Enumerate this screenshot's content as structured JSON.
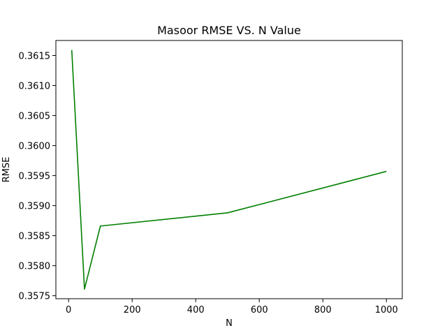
{
  "chart_data": {
    "type": "line",
    "title": "Masoor RMSE VS. N Value",
    "xlabel": "N",
    "ylabel": "RMSE",
    "xlim": [
      -40,
      1050
    ],
    "ylim": [
      0.35745,
      0.36175
    ],
    "xticks": [
      0,
      200,
      400,
      600,
      800,
      1000
    ],
    "xtick_labels": [
      "0",
      "200",
      "400",
      "600",
      "800",
      "1000"
    ],
    "yticks": [
      0.3575,
      0.358,
      0.3585,
      0.359,
      0.3595,
      0.36,
      0.3605,
      0.361,
      0.3615
    ],
    "ytick_labels": [
      "0.3575",
      "0.3580",
      "0.3585",
      "0.3590",
      "0.3595",
      "0.3600",
      "0.3605",
      "0.3610",
      "0.3615"
    ],
    "grid": false,
    "series": [
      {
        "color": "#008000",
        "x": [
          10,
          50,
          100,
          500,
          1000
        ],
        "y": [
          0.36159,
          0.35761,
          0.35866,
          0.35888,
          0.35957
        ]
      }
    ]
  }
}
